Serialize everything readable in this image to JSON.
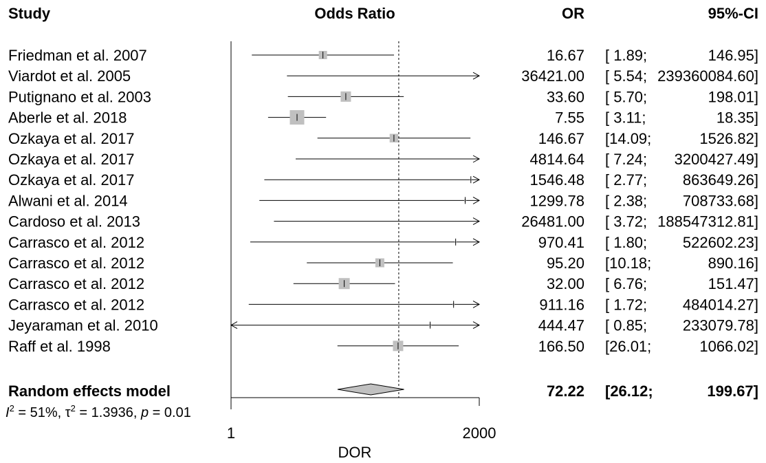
{
  "chart_data": {
    "type": "forest",
    "headers": {
      "study": "Study",
      "plot": "Odds Ratio",
      "or": "OR",
      "ci": "95%-CI"
    },
    "x_scale": "log",
    "xlim": [
      1,
      2000
    ],
    "null_value": 170.0,
    "xlabel": "DOR",
    "x_ticks": [
      {
        "value": 1,
        "label": "1"
      },
      {
        "value": 2000,
        "label": "2000"
      }
    ],
    "studies": [
      {
        "name": "Friedman et al. 2007",
        "or": 16.67,
        "lower": 1.89,
        "upper": 146.95,
        "or_text": "16.67",
        "ci_open": "[ 1.89;",
        "ci_close": "146.95]",
        "weight": 2.4
      },
      {
        "name": "Viardot et al. 2005",
        "or": 36421.0,
        "lower": 5.54,
        "upper": 239360084.6,
        "or_text": "36421.00",
        "ci_open": "[ 5.54;",
        "ci_close": "239360084.60]",
        "weight": 0.0
      },
      {
        "name": "Putignano et al. 2003",
        "or": 33.6,
        "lower": 5.7,
        "upper": 198.01,
        "or_text": "33.60",
        "ci_open": "[ 5.70;",
        "ci_close": "198.01]",
        "weight": 3.0
      },
      {
        "name": "Aberle et al. 2018",
        "or": 7.55,
        "lower": 3.11,
        "upper": 18.35,
        "or_text": "7.55",
        "ci_open": "[ 3.11;",
        "ci_close": "18.35]",
        "weight": 4.2
      },
      {
        "name": "Ozkaya et al. 2017",
        "or": 146.67,
        "lower": 14.09,
        "upper": 1526.82,
        "or_text": "146.67",
        "ci_open": "[14.09;",
        "ci_close": "1526.82]",
        "weight": 2.5
      },
      {
        "name": "Ozkaya et al. 2017",
        "or": 4814.64,
        "lower": 7.24,
        "upper": 3200427.49,
        "or_text": "4814.64",
        "ci_open": "[ 7.24;",
        "ci_close": "3200427.49]",
        "weight": 0.0
      },
      {
        "name": "Ozkaya et al. 2017",
        "or": 1546.48,
        "lower": 2.77,
        "upper": 863649.26,
        "or_text": "1546.48",
        "ci_open": "[ 2.77;",
        "ci_close": "863649.26]",
        "weight": 0.5
      },
      {
        "name": "Alwani et al. 2014",
        "or": 1299.78,
        "lower": 2.38,
        "upper": 708733.68,
        "or_text": "1299.78",
        "ci_open": "[ 2.38;",
        "ci_close": "708733.68]",
        "weight": 0.6
      },
      {
        "name": "Cardoso et al. 2013",
        "or": 26481.0,
        "lower": 3.72,
        "upper": 188547312.81,
        "or_text": "26481.00",
        "ci_open": "[ 3.72;",
        "ci_close": "188547312.81]",
        "weight": 0.0
      },
      {
        "name": "Carrasco et al. 2012",
        "or": 970.41,
        "lower": 1.8,
        "upper": 522602.23,
        "or_text": "970.41",
        "ci_open": "[ 1.80;",
        "ci_close": "522602.23]",
        "weight": 0.6
      },
      {
        "name": "Carrasco et al. 2012",
        "or": 95.2,
        "lower": 10.18,
        "upper": 890.16,
        "or_text": "95.20",
        "ci_open": "[10.18;",
        "ci_close": "890.16]",
        "weight": 2.6
      },
      {
        "name": "Carrasco et al. 2012",
        "or": 32.0,
        "lower": 6.76,
        "upper": 151.47,
        "or_text": "32.00",
        "ci_open": "[ 6.76;",
        "ci_close": "151.47]",
        "weight": 3.2
      },
      {
        "name": "Carrasco et al. 2012",
        "or": 911.16,
        "lower": 1.72,
        "upper": 484014.27,
        "or_text": "911.16",
        "ci_open": "[ 1.72;",
        "ci_close": "484014.27]",
        "weight": 0.6
      },
      {
        "name": "Jeyaraman et al. 2010",
        "or": 444.47,
        "lower": 0.85,
        "upper": 233079.78,
        "or_text": "444.47",
        "ci_open": "[ 0.85;",
        "ci_close": "233079.78]",
        "weight": 0.7
      },
      {
        "name": "Raff et al. 1998",
        "or": 166.5,
        "lower": 26.01,
        "upper": 1066.02,
        "or_text": "166.50",
        "ci_open": "[26.01;",
        "ci_close": "1066.02]",
        "weight": 3.0
      }
    ],
    "summary": {
      "name": "Random effects model",
      "or": 72.22,
      "lower": 26.12,
      "upper": 199.67,
      "or_text": "72.22",
      "ci_open": "[26.12;",
      "ci_close": "199.67]"
    },
    "heterogeneity": {
      "i2": "51%",
      "tau2": "1.3936",
      "p": "0.01"
    },
    "colors": {
      "box": "#c0c0c0",
      "diamond": "#c0c0c0",
      "line": "#000000"
    }
  }
}
